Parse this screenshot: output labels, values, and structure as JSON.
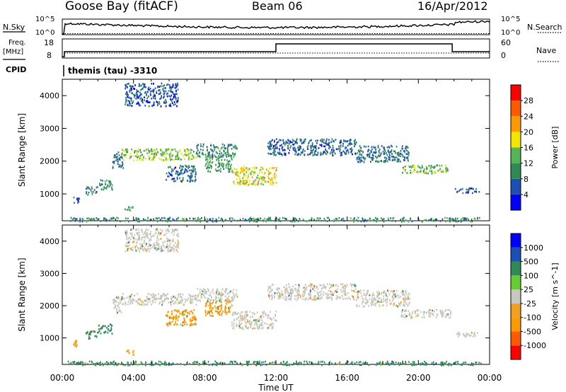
{
  "header": {
    "station": "Goose Bay (fitACF)",
    "beam": "Beam 06",
    "date": "16/Apr/2012"
  },
  "strip_labels": {
    "nsky": "N.Sky",
    "nsearch": "N.Search",
    "freq_line1": "Freq.",
    "freq_line2": "[MHz]",
    "nave": "Nave",
    "cpid": "CPID",
    "cpid_value": "themis (tau) -3310",
    "noise_tick_top": "10^5",
    "noise_tick_bottom": "10^0",
    "freq_tick_top": "18",
    "freq_tick_bottom": "8",
    "nave_tick_top": "60",
    "nave_tick_bottom": "0"
  },
  "chart_data": [
    {
      "type": "heatmap",
      "title": "",
      "xlabel": "Time UT",
      "ylabel": "Slant Range [km]",
      "xlim": [
        0,
        24
      ],
      "ylim": [
        180,
        4500
      ],
      "xticks": [
        "00:00",
        "04:00",
        "08:00",
        "12:00",
        "16:00",
        "20:00",
        "00:00"
      ],
      "yticks": [
        "1000",
        "2000",
        "3000",
        "4000"
      ],
      "colorbar": {
        "label": "Power [dB]",
        "levels": [
          0,
          4,
          8,
          12,
          16,
          20,
          24,
          28,
          32
        ],
        "ticks": [
          "4",
          "8",
          "12",
          "16",
          "20",
          "24",
          "28"
        ],
        "colors": [
          "#0000ff",
          "#1e4fb3",
          "#2f8a58",
          "#57b357",
          "#f2e600",
          "#ff9900",
          "#ff5a00",
          "#ff0000"
        ]
      },
      "bands": [
        {
          "t": [
            0.6,
            1.0
          ],
          "r": [
            750,
            950
          ],
          "val": 6
        },
        {
          "t": [
            1.3,
            2.0
          ],
          "r": [
            1000,
            1250
          ],
          "val": 9
        },
        {
          "t": [
            2.0,
            2.8
          ],
          "r": [
            1150,
            1450
          ],
          "val": 10
        },
        {
          "t": [
            2.8,
            3.4
          ],
          "r": [
            1800,
            2300
          ],
          "val": 8
        },
        {
          "t": [
            3.3,
            7.5
          ],
          "r": [
            2050,
            2400
          ],
          "val": 15
        },
        {
          "t": [
            7.5,
            9.8
          ],
          "r": [
            2150,
            2550
          ],
          "val": 10
        },
        {
          "t": [
            3.5,
            6.5
          ],
          "r": [
            3700,
            4400
          ],
          "val": 6
        },
        {
          "t": [
            5.8,
            7.5
          ],
          "r": [
            1400,
            1900
          ],
          "val": 7
        },
        {
          "t": [
            8.0,
            9.5
          ],
          "r": [
            1700,
            2200
          ],
          "val": 11
        },
        {
          "t": [
            9.5,
            12.0
          ],
          "r": [
            1300,
            1850
          ],
          "val": 18
        },
        {
          "t": [
            11.5,
            16.5
          ],
          "r": [
            2200,
            2700
          ],
          "val": 7
        },
        {
          "t": [
            16.5,
            19.5
          ],
          "r": [
            2000,
            2500
          ],
          "val": 8
        },
        {
          "t": [
            19.0,
            21.8
          ],
          "r": [
            1650,
            1900
          ],
          "val": 14
        },
        {
          "t": [
            3.5,
            4.0
          ],
          "r": [
            500,
            650
          ],
          "val": 12
        },
        {
          "t": [
            0.3,
            23.5
          ],
          "r": [
            180,
            300
          ],
          "val": 10
        },
        {
          "t": [
            22.0,
            23.4
          ],
          "r": [
            1050,
            1200
          ],
          "val": 6
        }
      ]
    },
    {
      "type": "heatmap",
      "title": "",
      "xlabel": "Time UT",
      "ylabel": "Slant Range [km]",
      "xlim": [
        0,
        24
      ],
      "ylim": [
        180,
        4500
      ],
      "xticks": [
        "00:00",
        "04:00",
        "08:00",
        "12:00",
        "16:00",
        "20:00",
        "00:00"
      ],
      "yticks": [
        "1000",
        "2000",
        "3000",
        "4000"
      ],
      "colorbar": {
        "label": "Velocity [m s^-1]",
        "levels": [
          -1500,
          -1000,
          -500,
          -100,
          -25,
          25,
          100,
          500,
          1000,
          1500
        ],
        "ticks": [
          "-1000",
          "-500",
          "-100",
          "-25",
          "25",
          "100",
          "500",
          "1000"
        ],
        "colors": [
          "#ff0000",
          "#ff5a00",
          "#ff9900",
          "#f2a020",
          "#c8c8c0",
          "#66cc33",
          "#2f8a58",
          "#1e4fb3",
          "#0000ff"
        ]
      },
      "bands": [
        {
          "t": [
            0.6,
            1.0
          ],
          "r": [
            750,
            950
          ],
          "val": -150
        },
        {
          "t": [
            1.3,
            2.0
          ],
          "r": [
            1000,
            1250
          ],
          "val": 150
        },
        {
          "t": [
            2.0,
            2.8
          ],
          "r": [
            1150,
            1450
          ],
          "val": 400
        },
        {
          "t": [
            2.8,
            3.4
          ],
          "r": [
            1800,
            2300
          ],
          "val": 0
        },
        {
          "t": [
            3.3,
            7.5
          ],
          "r": [
            2050,
            2400
          ],
          "val": 0
        },
        {
          "t": [
            7.5,
            9.8
          ],
          "r": [
            2150,
            2550
          ],
          "val": 0
        },
        {
          "t": [
            3.5,
            6.5
          ],
          "r": [
            3700,
            4400
          ],
          "val": 0
        },
        {
          "t": [
            5.8,
            7.5
          ],
          "r": [
            1400,
            1900
          ],
          "val": -200
        },
        {
          "t": [
            8.0,
            9.5
          ],
          "r": [
            1700,
            2200
          ],
          "val": -150
        },
        {
          "t": [
            9.5,
            12.0
          ],
          "r": [
            1300,
            1850
          ],
          "val": 0
        },
        {
          "t": [
            11.5,
            16.5
          ],
          "r": [
            2200,
            2700
          ],
          "val": 0
        },
        {
          "t": [
            16.5,
            19.5
          ],
          "r": [
            2000,
            2500
          ],
          "val": 0
        },
        {
          "t": [
            19.0,
            21.8
          ],
          "r": [
            1650,
            1900
          ],
          "val": 0
        },
        {
          "t": [
            3.5,
            4.0
          ],
          "r": [
            500,
            650
          ],
          "val": -300
        },
        {
          "t": [
            0.3,
            23.5
          ],
          "r": [
            180,
            300
          ],
          "val": 200
        },
        {
          "t": [
            22.0,
            23.4
          ],
          "r": [
            1050,
            1200
          ],
          "val": 0
        }
      ]
    }
  ]
}
